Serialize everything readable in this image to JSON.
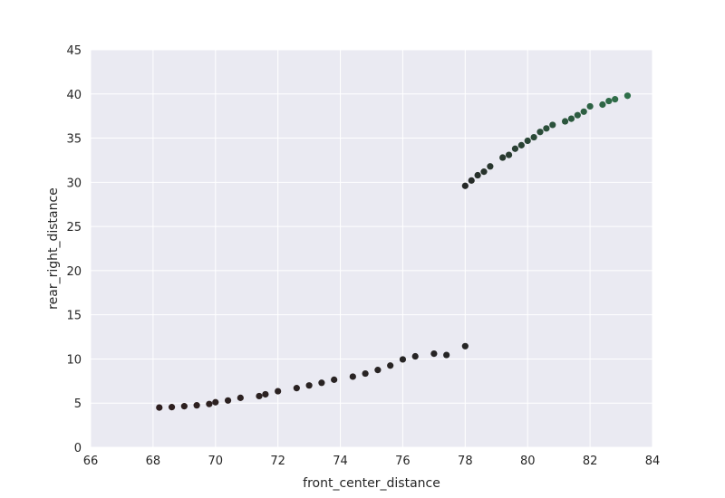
{
  "chart_data": {
    "type": "scatter",
    "title": "",
    "xlabel": "front_center_distance",
    "ylabel": "rear_right_distance",
    "xlim": [
      66,
      84
    ],
    "ylim": [
      0,
      45
    ],
    "xticks": [
      66,
      68,
      70,
      72,
      74,
      76,
      78,
      80,
      82,
      84
    ],
    "yticks": [
      0,
      5,
      10,
      15,
      20,
      25,
      30,
      35,
      40,
      45
    ],
    "xtick_labels": [
      "66",
      "68",
      "70",
      "72",
      "74",
      "76",
      "78",
      "80",
      "82",
      "84"
    ],
    "ytick_labels": [
      "0",
      "5",
      "10",
      "15",
      "20",
      "25",
      "30",
      "35",
      "40",
      "45"
    ],
    "grid": true,
    "colors": {
      "background": "#EAEAF2",
      "grid": "#FFFFFF",
      "point_start": "#2e1f1f",
      "point_mid": "#262626",
      "point_end": "#2f6f4a"
    },
    "points": [
      [
        68.2,
        4.5
      ],
      [
        68.6,
        4.55
      ],
      [
        69.0,
        4.65
      ],
      [
        69.4,
        4.75
      ],
      [
        69.8,
        4.9
      ],
      [
        70.0,
        5.1
      ],
      [
        70.4,
        5.3
      ],
      [
        70.8,
        5.6
      ],
      [
        71.4,
        5.8
      ],
      [
        71.6,
        6.0
      ],
      [
        72.0,
        6.35
      ],
      [
        72.6,
        6.7
      ],
      [
        73.0,
        7.0
      ],
      [
        73.4,
        7.3
      ],
      [
        73.8,
        7.65
      ],
      [
        74.4,
        8.0
      ],
      [
        74.8,
        8.35
      ],
      [
        75.2,
        8.75
      ],
      [
        75.6,
        9.25
      ],
      [
        76.0,
        9.95
      ],
      [
        76.4,
        10.3
      ],
      [
        77.0,
        10.6
      ],
      [
        77.4,
        10.45
      ],
      [
        78.0,
        11.45
      ],
      [
        78.0,
        29.6
      ],
      [
        78.2,
        30.2
      ],
      [
        78.4,
        30.8
      ],
      [
        78.6,
        31.2
      ],
      [
        78.8,
        31.8
      ],
      [
        79.2,
        32.8
      ],
      [
        79.4,
        33.1
      ],
      [
        79.6,
        33.8
      ],
      [
        79.8,
        34.2
      ],
      [
        80.0,
        34.7
      ],
      [
        80.2,
        35.1
      ],
      [
        80.4,
        35.7
      ],
      [
        80.6,
        36.1
      ],
      [
        80.8,
        36.5
      ],
      [
        81.2,
        36.9
      ],
      [
        81.4,
        37.2
      ],
      [
        81.6,
        37.6
      ],
      [
        81.8,
        38.0
      ],
      [
        82.0,
        38.6
      ],
      [
        82.4,
        38.8
      ],
      [
        82.6,
        39.2
      ],
      [
        82.8,
        39.4
      ],
      [
        83.2,
        39.8
      ]
    ]
  }
}
